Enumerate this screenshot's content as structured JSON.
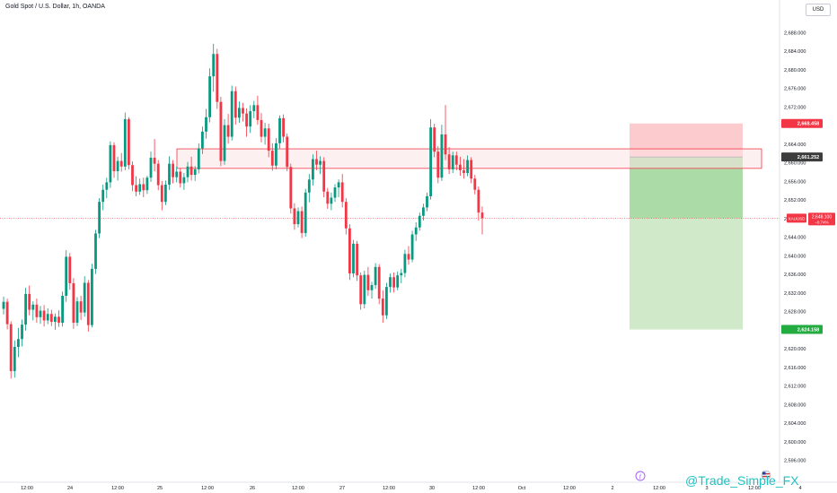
{
  "header": {
    "title": "Gold Spot / U.S. Dollar, 1h, OANDA",
    "currency_button": "USD"
  },
  "watermark": "@Trade_Simple_FX",
  "chart_data": {
    "type": "candlestick",
    "symbol": "XAUUSD",
    "ylim": [
      2594,
      2690
    ],
    "price_ticks": [
      "2,596.000",
      "2,600.000",
      "2,604.000",
      "2,608.000",
      "2,612.000",
      "2,616.000",
      "2,620.000",
      "2,624.000",
      "2,628.000",
      "2,632.000",
      "2,636.000",
      "2,640.000",
      "2,644.000",
      "2,648.000",
      "2,652.000",
      "2,656.000",
      "2,660.000",
      "2,664.000",
      "2,668.000",
      "2,672.000",
      "2,676.000",
      "2,680.000",
      "2,684.000",
      "2,688.000"
    ],
    "time_ticks": [
      "12:00",
      "24",
      "12:00",
      "25",
      "12:00",
      "26",
      "12:00",
      "27",
      "12:00",
      "30",
      "12:00",
      "Oct",
      "12:00",
      "2",
      "12:00",
      "3",
      "12:00",
      "4"
    ],
    "colors": {
      "up": "#089981",
      "down": "#f23645",
      "zone_fill": "#fbe3e6",
      "zone_stroke": "#f23645",
      "stop_fill": "#fccbcd",
      "profit_fill": "#cfe9c9",
      "profit_strong": "#9fd69b",
      "current_line": "#f23645"
    },
    "support_resistance_zone": [
      2658.8,
      2663.0
    ],
    "position": {
      "type": "short",
      "entry": 2661.252,
      "stop_loss": 2668.458,
      "take_profit": 2624.158
    },
    "current_price": {
      "symbol": "XAUUSD",
      "value": "2,648.100",
      "change": "−0.74%",
      "price": 2648.1
    },
    "labels": {
      "stop": "2,668.458",
      "entry": "2,661.252",
      "target": "2,624.158"
    },
    "candles": [
      [
        2628.6,
        2631.2,
        2627.4,
        2630.1
      ],
      [
        2630.1,
        2630.8,
        2624.2,
        2625.3
      ],
      [
        2625.3,
        2625.9,
        2613.6,
        2615.2
      ],
      [
        2615.2,
        2621.8,
        2613.8,
        2620.4
      ],
      [
        2620.4,
        2624.5,
        2618.2,
        2622.1
      ],
      [
        2622.1,
        2626.3,
        2620.5,
        2625.2
      ],
      [
        2625.2,
        2633.1,
        2623.9,
        2631.8
      ],
      [
        2631.8,
        2633.6,
        2627.2,
        2628.4
      ],
      [
        2628.4,
        2630.2,
        2626.1,
        2629.5
      ],
      [
        2629.5,
        2630.8,
        2625.6,
        2626.8
      ],
      [
        2626.8,
        2629.2,
        2625.4,
        2628.2
      ],
      [
        2628.2,
        2629.4,
        2624.8,
        2626.1
      ],
      [
        2626.1,
        2628.7,
        2625.3,
        2627.5
      ],
      [
        2627.5,
        2628.4,
        2624.9,
        2625.8
      ],
      [
        2625.8,
        2627.6,
        2624.1,
        2626.9
      ],
      [
        2626.9,
        2628.3,
        2624.7,
        2625.6
      ],
      [
        2625.6,
        2632.3,
        2624.8,
        2631.4
      ],
      [
        2631.4,
        2641.2,
        2630.1,
        2639.8
      ],
      [
        2639.8,
        2640.6,
        2632.7,
        2634.1
      ],
      [
        2634.1,
        2635.2,
        2624.3,
        2625.6
      ],
      [
        2625.6,
        2631.1,
        2624.9,
        2630.2
      ],
      [
        2630.2,
        2631.4,
        2626.2,
        2627.8
      ],
      [
        2627.8,
        2635.6,
        2626.9,
        2634.2
      ],
      [
        2634.2,
        2634.8,
        2623.7,
        2625.1
      ],
      [
        2625.1,
        2638.3,
        2624.6,
        2637.2
      ],
      [
        2637.2,
        2645.6,
        2636.1,
        2644.8
      ],
      [
        2644.8,
        2652.4,
        2643.8,
        2651.6
      ],
      [
        2651.6,
        2655.3,
        2649.8,
        2654.2
      ],
      [
        2654.2,
        2656.8,
        2652.4,
        2655.8
      ],
      [
        2655.8,
        2664.6,
        2654.6,
        2663.8
      ],
      [
        2663.8,
        2664.4,
        2656.8,
        2658.2
      ],
      [
        2658.2,
        2661.3,
        2656.2,
        2660.4
      ],
      [
        2660.4,
        2662.1,
        2658.1,
        2659.2
      ],
      [
        2659.2,
        2670.8,
        2658.4,
        2669.4
      ],
      [
        2669.4,
        2669.8,
        2658.6,
        2659.5
      ],
      [
        2659.5,
        2660.3,
        2653.9,
        2655.2
      ],
      [
        2655.2,
        2657.1,
        2652.8,
        2653.8
      ],
      [
        2653.8,
        2656.6,
        2653.1,
        2655.4
      ],
      [
        2655.4,
        2656.8,
        2652.6,
        2654.1
      ],
      [
        2654.1,
        2657.2,
        2653.3,
        2656.8
      ],
      [
        2656.8,
        2662.4,
        2655.9,
        2661.1
      ],
      [
        2661.1,
        2665.1,
        2658.2,
        2659.8
      ],
      [
        2659.8,
        2660.6,
        2654.1,
        2655.2
      ],
      [
        2655.2,
        2656.1,
        2649.8,
        2651.6
      ],
      [
        2651.6,
        2656.2,
        2650.9,
        2655.3
      ],
      [
        2655.3,
        2661.4,
        2654.2,
        2659.8
      ],
      [
        2659.8,
        2660.6,
        2655.6,
        2656.9
      ],
      [
        2656.9,
        2659.2,
        2655.8,
        2658.1
      ],
      [
        2658.1,
        2658.9,
        2654.7,
        2655.6
      ],
      [
        2655.6,
        2657.8,
        2654.2,
        2656.9
      ],
      [
        2656.9,
        2660.2,
        2655.8,
        2659.2
      ],
      [
        2659.2,
        2661.3,
        2656.2,
        2657.4
      ],
      [
        2657.4,
        2659.3,
        2656.1,
        2658.6
      ],
      [
        2658.6,
        2664.2,
        2657.7,
        2663.1
      ],
      [
        2663.1,
        2667.8,
        2661.9,
        2666.7
      ],
      [
        2666.7,
        2671.6,
        2665.2,
        2669.8
      ],
      [
        2669.8,
        2680.3,
        2668.7,
        2678.6
      ],
      [
        2678.6,
        2685.6,
        2675.3,
        2683.4
      ],
      [
        2683.4,
        2684.5,
        2671.6,
        2673.1
      ],
      [
        2673.1,
        2674.2,
        2659.3,
        2660.4
      ],
      [
        2660.4,
        2669.4,
        2659.6,
        2668.1
      ],
      [
        2668.1,
        2670.5,
        2664.1,
        2665.6
      ],
      [
        2665.6,
        2676.6,
        2664.8,
        2675.4
      ],
      [
        2675.4,
        2676.4,
        2668.2,
        2669.7
      ],
      [
        2669.7,
        2673.2,
        2668.6,
        2671.8
      ],
      [
        2671.8,
        2672.9,
        2668.9,
        2670.6
      ],
      [
        2670.6,
        2671.7,
        2665.6,
        2667.8
      ],
      [
        2667.8,
        2672.4,
        2666.4,
        2671.1
      ],
      [
        2671.1,
        2673.3,
        2669.6,
        2672.4
      ],
      [
        2672.4,
        2674.4,
        2668.2,
        2669.2
      ],
      [
        2669.2,
        2670.7,
        2664.4,
        2665.6
      ],
      [
        2665.6,
        2668.6,
        2663.9,
        2667.4
      ],
      [
        2667.4,
        2668.4,
        2661.2,
        2662.6
      ],
      [
        2662.6,
        2664.2,
        2658.3,
        2659.4
      ],
      [
        2659.4,
        2665.3,
        2658.6,
        2664.2
      ],
      [
        2664.2,
        2670.2,
        2663.1,
        2669.6
      ],
      [
        2669.6,
        2670.4,
        2664.4,
        2665.6
      ],
      [
        2665.6,
        2666.3,
        2658.2,
        2659.1
      ],
      [
        2659.1,
        2659.8,
        2649.1,
        2650.2
      ],
      [
        2650.2,
        2651.3,
        2645.6,
        2646.8
      ],
      [
        2646.8,
        2650.4,
        2646.1,
        2649.6
      ],
      [
        2649.6,
        2650.6,
        2643.8,
        2644.9
      ],
      [
        2644.9,
        2654.4,
        2644.1,
        2653.6
      ],
      [
        2653.6,
        2657.6,
        2651.5,
        2656.4
      ],
      [
        2656.4,
        2661.8,
        2655.1,
        2660.8
      ],
      [
        2660.8,
        2662.6,
        2658.4,
        2659.6
      ],
      [
        2659.6,
        2661.4,
        2657.6,
        2660.4
      ],
      [
        2660.4,
        2661.2,
        2652.6,
        2653.8
      ],
      [
        2653.8,
        2654.6,
        2650.1,
        2651.2
      ],
      [
        2651.2,
        2653.6,
        2649.8,
        2652.5
      ],
      [
        2652.5,
        2655.4,
        2651.6,
        2654.7
      ],
      [
        2654.7,
        2656.4,
        2652.6,
        2655.8
      ],
      [
        2655.8,
        2657.6,
        2650.4,
        2651.6
      ],
      [
        2651.6,
        2652.4,
        2644.6,
        2645.9
      ],
      [
        2645.9,
        2646.8,
        2634.8,
        2636.2
      ],
      [
        2636.2,
        2643.4,
        2635.4,
        2642.6
      ],
      [
        2642.6,
        2643.2,
        2634.6,
        2635.8
      ],
      [
        2635.8,
        2636.4,
        2628.4,
        2629.6
      ],
      [
        2629.6,
        2636.8,
        2628.7,
        2635.9
      ],
      [
        2635.9,
        2637.6,
        2631.4,
        2632.6
      ],
      [
        2632.6,
        2634.4,
        2630.8,
        2633.7
      ],
      [
        2633.7,
        2638.4,
        2632.9,
        2637.6
      ],
      [
        2637.6,
        2638.2,
        2629.6,
        2630.8
      ],
      [
        2630.8,
        2632.6,
        2625.6,
        2627.2
      ],
      [
        2627.2,
        2634.2,
        2626.4,
        2633.3
      ],
      [
        2633.3,
        2636.2,
        2632.1,
        2635.4
      ],
      [
        2635.4,
        2636.4,
        2632.1,
        2633.2
      ],
      [
        2633.2,
        2636.6,
        2632.6,
        2635.8
      ],
      [
        2635.8,
        2637.2,
        2634.1,
        2636.3
      ],
      [
        2636.3,
        2641.3,
        2635.4,
        2640.4
      ],
      [
        2640.4,
        2642.1,
        2638.1,
        2639.2
      ],
      [
        2639.2,
        2645.4,
        2638.6,
        2644.6
      ],
      [
        2644.6,
        2647.2,
        2643.2,
        2646.1
      ],
      [
        2646.1,
        2649.3,
        2645.4,
        2648.6
      ],
      [
        2648.6,
        2651.2,
        2647.6,
        2650.4
      ],
      [
        2650.4,
        2653.6,
        2649.6,
        2652.8
      ],
      [
        2652.8,
        2669.4,
        2652.1,
        2667.6
      ],
      [
        2667.6,
        2668.4,
        2661.2,
        2662.4
      ],
      [
        2662.4,
        2663.6,
        2655.6,
        2656.8
      ],
      [
        2656.8,
        2668.2,
        2656.1,
        2666.1
      ],
      [
        2666.1,
        2672.4,
        2660.6,
        2661.8
      ],
      [
        2661.8,
        2663.4,
        2657.6,
        2658.6
      ],
      [
        2658.6,
        2662.4,
        2657.8,
        2661.6
      ],
      [
        2661.6,
        2662.4,
        2658.4,
        2659.6
      ],
      [
        2659.6,
        2661.3,
        2657.2,
        2658.4
      ],
      [
        2658.4,
        2660.8,
        2656.6,
        2657.8
      ],
      [
        2657.8,
        2661.6,
        2657.1,
        2660.6
      ],
      [
        2660.6,
        2661.2,
        2655.6,
        2656.6
      ],
      [
        2656.6,
        2657.4,
        2653.2,
        2654.2
      ],
      [
        2654.2,
        2654.9,
        2647.6,
        2649.3
      ],
      [
        2649.3,
        2650.6,
        2644.6,
        2648.1
      ]
    ]
  }
}
